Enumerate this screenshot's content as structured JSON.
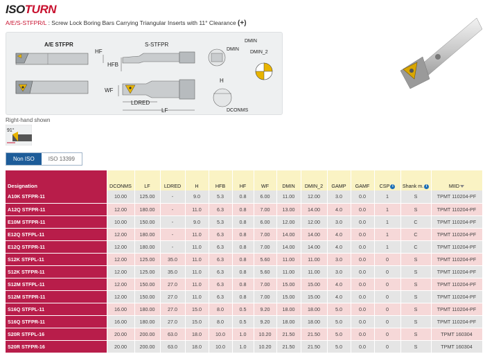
{
  "brand": {
    "part1": "ISO",
    "part2": "TURN"
  },
  "subtitle": {
    "code": "A/E/S-STFPR/L",
    "description": " : Screw Lock Boring Bars Carrying Triangular Inserts with 11° Clearance ",
    "plus": "(+)"
  },
  "drawing": {
    "labels": {
      "ae": "A/E STFPR",
      "s": "S-STFPR",
      "hf": "HF",
      "hfb": "HFB",
      "wf": "WF",
      "ldred": "LDRED",
      "lf": "LF",
      "dmin": "DMIN",
      "dmin2": "DMIN_2",
      "h": "H",
      "dconms": "DCONMS"
    }
  },
  "right_hand": {
    "text": "Right-hand shown",
    "angle": "91°"
  },
  "tabs": [
    {
      "label": "Non ISO",
      "active": true
    },
    {
      "label": "ISO 13399",
      "active": false
    }
  ],
  "table": {
    "headers": [
      "Designation",
      "DCONMS",
      "LF",
      "LDRED",
      "H",
      "HFB",
      "HF",
      "WF",
      "DMIN",
      "DMIN_2",
      "GAMP",
      "GAMF",
      "CSP",
      "Shank m.",
      "MIID"
    ],
    "rows": [
      [
        "A10K STFPR-11",
        "10.00",
        "125.00",
        "-",
        "9.0",
        "5.3",
        "0.8",
        "6.00",
        "11.00",
        "12.00",
        "3.0",
        "0.0",
        "1",
        "S",
        "TPMT 110204-PF"
      ],
      [
        "A12Q STFPR-11",
        "12.00",
        "180.00",
        "-",
        "11.0",
        "6.3",
        "0.8",
        "7.00",
        "13.00",
        "14.00",
        "4.0",
        "0.0",
        "1",
        "S",
        "TPMT 110204-PF"
      ],
      [
        "E10M STFPR-11",
        "10.00",
        "150.00",
        "-",
        "9.0",
        "5.3",
        "0.8",
        "6.00",
        "12.00",
        "12.00",
        "3.0",
        "0.0",
        "1",
        "C",
        "TPMT 110204-PF"
      ],
      [
        "E12Q STFPL-11",
        "12.00",
        "180.00",
        "-",
        "11.0",
        "6.3",
        "0.8",
        "7.00",
        "14.00",
        "14.00",
        "4.0",
        "0.0",
        "1",
        "C",
        "TPMT 110204-PF"
      ],
      [
        "E12Q STFPR-11",
        "12.00",
        "180.00",
        "-",
        "11.0",
        "6.3",
        "0.8",
        "7.00",
        "14.00",
        "14.00",
        "4.0",
        "0.0",
        "1",
        "C",
        "TPMT 110204-PF"
      ],
      [
        "S12K STFPL-11",
        "12.00",
        "125.00",
        "35.0",
        "11.0",
        "6.3",
        "0.8",
        "5.60",
        "11.00",
        "11.00",
        "3.0",
        "0.0",
        "0",
        "S",
        "TPMT 110204-PF"
      ],
      [
        "S12K STFPR-11",
        "12.00",
        "125.00",
        "35.0",
        "11.0",
        "6.3",
        "0.8",
        "5.60",
        "11.00",
        "11.00",
        "3.0",
        "0.0",
        "0",
        "S",
        "TPMT 110204-PF"
      ],
      [
        "S12M STFPL-11",
        "12.00",
        "150.00",
        "27.0",
        "11.0",
        "6.3",
        "0.8",
        "7.00",
        "15.00",
        "15.00",
        "4.0",
        "0.0",
        "0",
        "S",
        "TPMT 110204-PF"
      ],
      [
        "S12M STFPR-11",
        "12.00",
        "150.00",
        "27.0",
        "11.0",
        "6.3",
        "0.8",
        "7.00",
        "15.00",
        "15.00",
        "4.0",
        "0.0",
        "0",
        "S",
        "TPMT 110204-PF"
      ],
      [
        "S16Q STFPL-11",
        "16.00",
        "180.00",
        "27.0",
        "15.0",
        "8.0",
        "0.5",
        "9.20",
        "18.00",
        "18.00",
        "5.0",
        "0.0",
        "0",
        "S",
        "TPMT 110204-PF"
      ],
      [
        "S16Q STFPR-11",
        "16.00",
        "180.00",
        "27.0",
        "15.0",
        "8.0",
        "0.5",
        "9.20",
        "18.00",
        "18.00",
        "5.0",
        "0.0",
        "0",
        "S",
        "TPMT 110204-PF"
      ],
      [
        "S20R STFPL-16",
        "20.00",
        "200.00",
        "63.0",
        "18.0",
        "10.0",
        "1.0",
        "10.20",
        "21.50",
        "21.50",
        "5.0",
        "0.0",
        "0",
        "S",
        "TPMT 160304"
      ],
      [
        "S20R STFPR-16",
        "20.00",
        "200.00",
        "63.0",
        "18.0",
        "10.0",
        "1.0",
        "10.20",
        "21.50",
        "21.50",
        "5.0",
        "0.0",
        "0",
        "S",
        "TPMT 160304"
      ]
    ]
  },
  "colors": {
    "accent": "#c8102e",
    "designation_bg": "#b81d4a",
    "header_bg": "#faf3c4",
    "row_pink": "#f6d8d8",
    "row_gray": "#e5e5e5",
    "tab_active": "#1d5c99",
    "insert_gold": "#e8b400"
  }
}
